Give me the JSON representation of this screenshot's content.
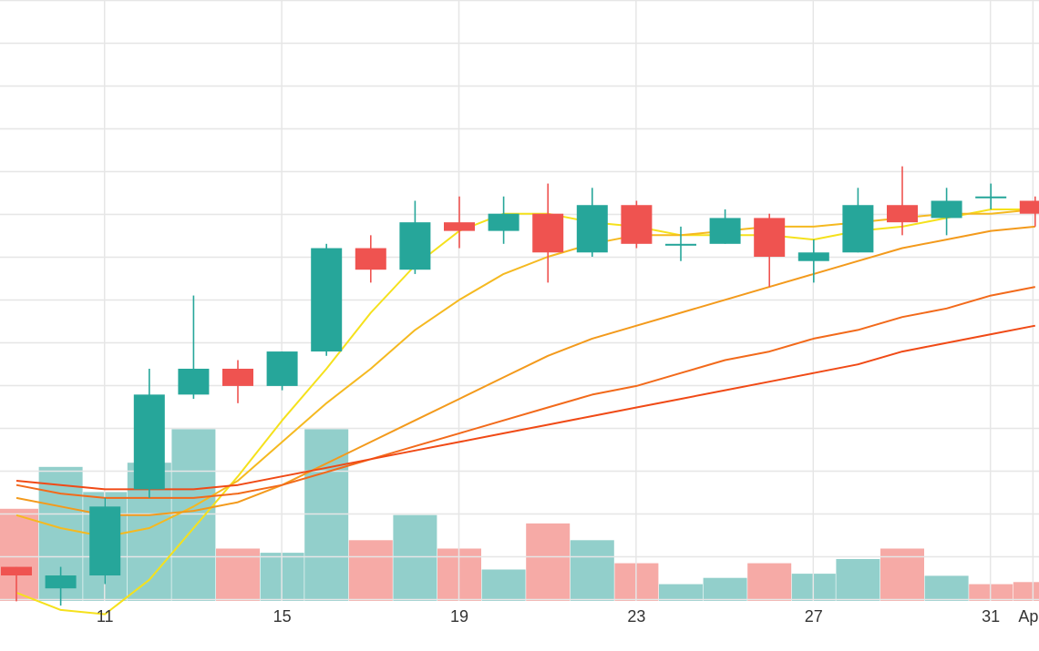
{
  "chart_data": {
    "type": "candlestick",
    "title": "",
    "xlabel": "",
    "ylabel": "",
    "x_tick_labels": [
      "11",
      "15",
      "19",
      "23",
      "27",
      "31",
      "Apr"
    ],
    "grid": true,
    "price_range": [
      0,
      140
    ],
    "volume_range": [
      0,
      42
    ],
    "candles": [
      {
        "date": "Mar 10",
        "open": 28,
        "high": 28,
        "low": 20,
        "close": 26
      },
      {
        "date": "Mar 11",
        "open": 23,
        "high": 28,
        "low": 19,
        "close": 26
      },
      {
        "date": "Mar 12",
        "open": 26,
        "high": 44,
        "low": 24,
        "close": 42
      },
      {
        "date": "Mar 13",
        "open": 46,
        "high": 74,
        "low": 44,
        "close": 68
      },
      {
        "date": "Mar 14",
        "open": 68,
        "high": 91,
        "low": 67,
        "close": 74
      },
      {
        "date": "Mar 15",
        "open": 74,
        "high": 76,
        "low": 66,
        "close": 70
      },
      {
        "date": "Mar 16",
        "open": 70,
        "high": 78,
        "low": 69,
        "close": 78
      },
      {
        "date": "Mar 17",
        "open": 78,
        "high": 103,
        "low": 77,
        "close": 102
      },
      {
        "date": "Mar 18",
        "open": 102,
        "high": 105,
        "low": 94,
        "close": 97
      },
      {
        "date": "Mar 19",
        "open": 97,
        "high": 113,
        "low": 96,
        "close": 108
      },
      {
        "date": "Mar 20",
        "open": 108,
        "high": 114,
        "low": 102,
        "close": 106
      },
      {
        "date": "Mar 21",
        "open": 106,
        "high": 114,
        "low": 103,
        "close": 110
      },
      {
        "date": "Mar 22",
        "open": 110,
        "high": 117,
        "low": 94,
        "close": 101
      },
      {
        "date": "Mar 23",
        "open": 101,
        "high": 116,
        "low": 100,
        "close": 112
      },
      {
        "date": "Mar 24",
        "open": 112,
        "high": 113,
        "low": 102,
        "close": 103
      },
      {
        "date": "Mar 25",
        "open": 103,
        "high": 107,
        "low": 99,
        "close": 103
      },
      {
        "date": "Mar 26",
        "open": 103,
        "high": 111,
        "low": 103,
        "close": 109
      },
      {
        "date": "Mar 27",
        "open": 109,
        "high": 110,
        "low": 93,
        "close": 100
      },
      {
        "date": "Mar 28",
        "open": 99,
        "high": 104,
        "low": 94,
        "close": 101
      },
      {
        "date": "Mar 29",
        "open": 101,
        "high": 116,
        "low": 101,
        "close": 112
      },
      {
        "date": "Mar 30",
        "open": 112,
        "high": 121,
        "low": 105,
        "close": 108
      },
      {
        "date": "Mar 31",
        "open": 109,
        "high": 116,
        "low": 105,
        "close": 113
      },
      {
        "date": "Apr 1",
        "open": 114,
        "high": 117,
        "low": 111,
        "close": 114
      },
      {
        "date": "Apr 2",
        "open": 113,
        "high": 114,
        "low": 107,
        "close": 110
      }
    ],
    "volume": [
      {
        "date": "Mar 10",
        "value": 22,
        "direction": "down"
      },
      {
        "date": "Mar 11",
        "value": 32,
        "direction": "up"
      },
      {
        "date": "Mar 12",
        "value": 26,
        "direction": "up"
      },
      {
        "date": "Mar 13",
        "value": 33,
        "direction": "up"
      },
      {
        "date": "Mar 14",
        "value": 41,
        "direction": "up"
      },
      {
        "date": "Mar 15",
        "value": 12.5,
        "direction": "down"
      },
      {
        "date": "Mar 16",
        "value": 11.5,
        "direction": "up"
      },
      {
        "date": "Mar 17",
        "value": 41,
        "direction": "up"
      },
      {
        "date": "Mar 18",
        "value": 14.5,
        "direction": "down"
      },
      {
        "date": "Mar 19",
        "value": 20.5,
        "direction": "up"
      },
      {
        "date": "Mar 20",
        "value": 12.5,
        "direction": "down"
      },
      {
        "date": "Mar 21",
        "value": 7.5,
        "direction": "up"
      },
      {
        "date": "Mar 22",
        "value": 18.5,
        "direction": "down"
      },
      {
        "date": "Mar 23",
        "value": 14.5,
        "direction": "up"
      },
      {
        "date": "Mar 24",
        "value": 9,
        "direction": "down"
      },
      {
        "date": "Mar 25",
        "value": 4,
        "direction": "up"
      },
      {
        "date": "Mar 26",
        "value": 5.5,
        "direction": "up"
      },
      {
        "date": "Mar 27",
        "value": 9,
        "direction": "down"
      },
      {
        "date": "Mar 28",
        "value": 6.5,
        "direction": "up"
      },
      {
        "date": "Mar 29",
        "value": 10,
        "direction": "up"
      },
      {
        "date": "Mar 30",
        "value": 12.5,
        "direction": "down"
      },
      {
        "date": "Mar 31",
        "value": 6,
        "direction": "up"
      },
      {
        "date": "Apr 1",
        "value": 4,
        "direction": "down"
      },
      {
        "date": "Apr 2",
        "value": 4.5,
        "direction": "down"
      }
    ],
    "moving_averages": [
      {
        "color": "#f5e11c",
        "values": [
          22,
          18,
          17,
          25,
          37,
          49,
          62,
          74,
          87,
          98,
          106,
          110,
          110,
          108,
          107,
          105,
          105,
          105,
          104,
          106,
          107,
          109,
          111,
          111
        ]
      },
      {
        "color": "#f5b920",
        "values": [
          40,
          37,
          35,
          37,
          42,
          48,
          57,
          66,
          74,
          83,
          90,
          96,
          100,
          103,
          105,
          105,
          106,
          107,
          107,
          108,
          109,
          110,
          110,
          111
        ]
      },
      {
        "color": "#f39a1c",
        "values": [
          44,
          42,
          40,
          40,
          41,
          43,
          47,
          52,
          57,
          62,
          67,
          72,
          77,
          81,
          84,
          87,
          90,
          93,
          96,
          99,
          102,
          104,
          106,
          107
        ]
      },
      {
        "color": "#f26a1b",
        "values": [
          47,
          45,
          44,
          44,
          44,
          45,
          47,
          50,
          53,
          56,
          59,
          62,
          65,
          68,
          70,
          73,
          76,
          78,
          81,
          83,
          86,
          88,
          91,
          93
        ]
      },
      {
        "color": "#f04a16",
        "values": [
          48,
          47,
          46,
          46,
          46,
          47,
          49,
          51,
          53,
          55,
          57,
          59,
          61,
          63,
          65,
          67,
          69,
          71,
          73,
          75,
          78,
          80,
          82,
          84
        ]
      }
    ],
    "colors": {
      "up": "#26a69a",
      "down": "#ef5350",
      "volume_up": "#92cfcb",
      "volume_down": "#f6aaa6",
      "grid": "#e6e6e6",
      "tick_text": "#333333"
    }
  }
}
